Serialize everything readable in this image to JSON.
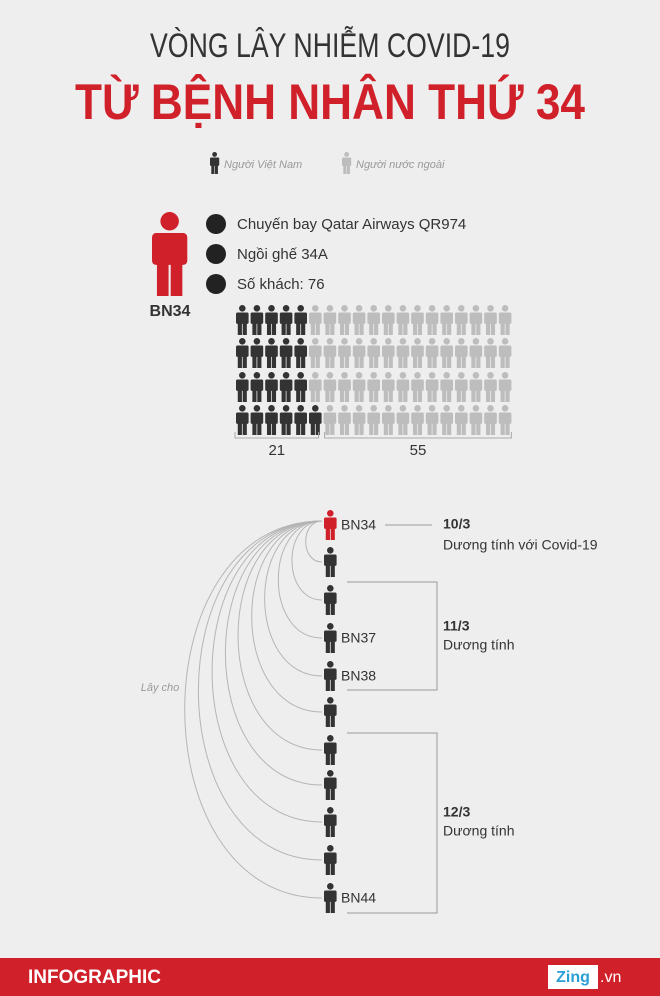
{
  "header": {
    "title": "VÒNG LÂY NHIỄM COVID-19",
    "subtitle": "TỪ BỆNH NHÂN THỨ 34"
  },
  "legend": [
    {
      "label": "Người Việt Nam",
      "color": "#333333"
    },
    {
      "label": "Người nước ngoài",
      "color": "#bdbdbd"
    }
  ],
  "patient": {
    "label": "BN34",
    "color": "#d0202a",
    "facts": [
      "Chuyến bay Qatar Airways QR974",
      "Ngồi ghế 34A",
      "Số khách: 76"
    ]
  },
  "passengers": {
    "groups": [
      {
        "count": 21,
        "color": "#333333"
      },
      {
        "count": 55,
        "color": "#bdbdbd"
      }
    ]
  },
  "chain": {
    "annotation": "Lây cho",
    "nodes": [
      "BN34",
      null,
      null,
      "BN37",
      "BN38",
      null,
      null,
      null,
      null,
      null,
      "BN44"
    ],
    "dates": [
      {
        "date": "10/3",
        "text": "Dương tính với Covid-19"
      },
      {
        "date": "11/3",
        "text": "Dương tính"
      },
      {
        "date": "12/3",
        "text": "Dương tính"
      }
    ]
  },
  "footer": {
    "label": "INFOGRAPHIC",
    "brand": "Zing",
    "domain": ".vn"
  }
}
